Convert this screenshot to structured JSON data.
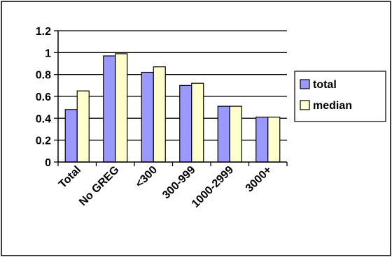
{
  "chart_data": {
    "type": "bar",
    "categories": [
      "Total",
      "No GREG",
      "<300",
      "300-999",
      "1000-2999",
      "3000+"
    ],
    "series": [
      {
        "name": "total",
        "color": "#9999ff",
        "values": [
          0.48,
          0.97,
          0.82,
          0.7,
          0.51,
          0.41
        ]
      },
      {
        "name": "median",
        "color": "#ffffcc",
        "values": [
          0.65,
          0.99,
          0.87,
          0.72,
          0.51,
          0.41
        ]
      }
    ],
    "ylim": [
      0,
      1.2
    ],
    "yticks": [
      "0",
      "0.2",
      "0.4",
      "0.6",
      "0.8",
      "1",
      "1.2"
    ],
    "grid": true,
    "legend_position": "right"
  }
}
